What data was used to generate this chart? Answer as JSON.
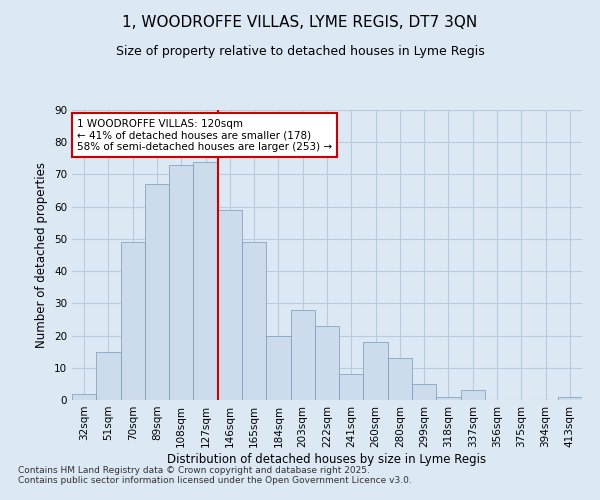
{
  "title_line1": "1, WOODROFFE VILLAS, LYME REGIS, DT7 3QN",
  "title_line2": "Size of property relative to detached houses in Lyme Regis",
  "xlabel": "Distribution of detached houses by size in Lyme Regis",
  "ylabel": "Number of detached properties",
  "categories": [
    "32sqm",
    "51sqm",
    "70sqm",
    "89sqm",
    "108sqm",
    "127sqm",
    "146sqm",
    "165sqm",
    "184sqm",
    "203sqm",
    "222sqm",
    "241sqm",
    "260sqm",
    "280sqm",
    "299sqm",
    "318sqm",
    "337sqm",
    "356sqm",
    "375sqm",
    "394sqm",
    "413sqm"
  ],
  "values": [
    2,
    15,
    49,
    67,
    73,
    74,
    59,
    49,
    20,
    28,
    23,
    8,
    18,
    13,
    5,
    1,
    3,
    0,
    0,
    0,
    1
  ],
  "bar_color": "#ccdcec",
  "bar_edge_color": "#7799bb",
  "red_line_x": 5.5,
  "annotation_line1": "1 WOODROFFE VILLAS: 120sqm",
  "annotation_line2": "← 41% of detached houses are smaller (178)",
  "annotation_line3": "58% of semi-detached houses are larger (253) →",
  "annotation_box_color": "#ffffff",
  "annotation_box_edge_color": "#cc0000",
  "ylim": [
    0,
    90
  ],
  "yticks": [
    0,
    10,
    20,
    30,
    40,
    50,
    60,
    70,
    80,
    90
  ],
  "background_color": "#dce8f4",
  "plot_background_color": "#dce8f4",
  "grid_color": "#b8cce0",
  "footer_line1": "Contains HM Land Registry data © Crown copyright and database right 2025.",
  "footer_line2": "Contains public sector information licensed under the Open Government Licence v3.0.",
  "title_fontsize": 11,
  "subtitle_fontsize": 9,
  "axis_label_fontsize": 8.5,
  "tick_fontsize": 7.5,
  "annotation_fontsize": 7.5,
  "footer_fontsize": 6.5
}
